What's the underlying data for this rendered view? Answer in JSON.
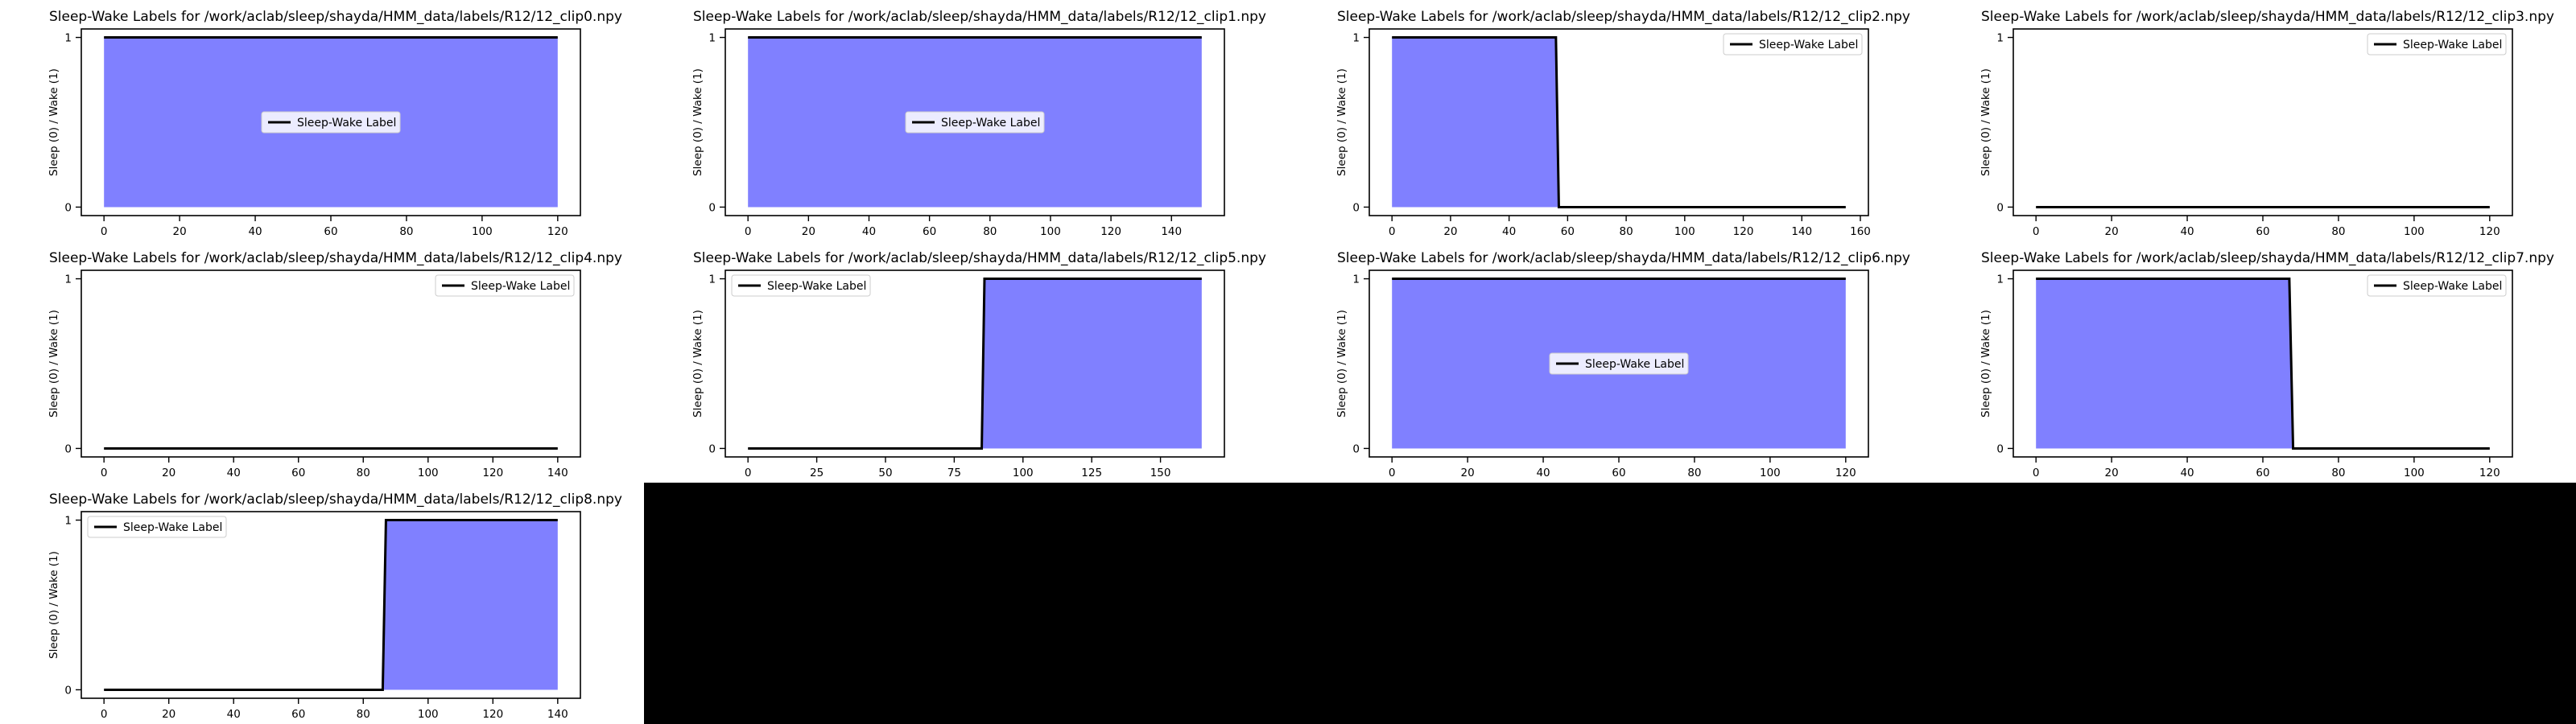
{
  "colors": {
    "fill": "#8080ff",
    "line": "#000000",
    "background": "#ffffff",
    "empty_area": "#000000"
  },
  "chart_data": [
    {
      "type": "area",
      "title": "Sleep-Wake Labels for /work/aclab/sleep/shayda/HMM_data/labels/R12/12_clip0.npy",
      "ylabel": "Sleep (0) / Wake (1)",
      "series": [
        {
          "name": "Sleep-Wake Label",
          "x": [
            0,
            120
          ],
          "y": [
            1,
            1
          ]
        }
      ],
      "xlim": [
        -6,
        126
      ],
      "ylim": [
        -0.05,
        1.05
      ],
      "xticks": [
        0,
        20,
        40,
        60,
        80,
        100,
        120
      ],
      "yticks": [
        0,
        1
      ],
      "legend_loc": "center"
    },
    {
      "type": "area",
      "title": "Sleep-Wake Labels for /work/aclab/sleep/shayda/HMM_data/labels/R12/12_clip1.npy",
      "ylabel": "Sleep (0) / Wake (1)",
      "series": [
        {
          "name": "Sleep-Wake Label",
          "x": [
            0,
            150
          ],
          "y": [
            1,
            1
          ]
        }
      ],
      "xlim": [
        -7.5,
        157.5
      ],
      "ylim": [
        -0.05,
        1.05
      ],
      "xticks": [
        0,
        20,
        40,
        60,
        80,
        100,
        120,
        140
      ],
      "yticks": [
        0,
        1
      ],
      "legend_loc": "center"
    },
    {
      "type": "area",
      "title": "Sleep-Wake Labels for /work/aclab/sleep/shayda/HMM_data/labels/R12/12_clip2.npy",
      "ylabel": "Sleep (0) / Wake (1)",
      "series": [
        {
          "name": "Sleep-Wake Label",
          "x": [
            0,
            56,
            57,
            155
          ],
          "y": [
            1,
            1,
            0,
            0
          ]
        }
      ],
      "xlim": [
        -7.75,
        162.75
      ],
      "ylim": [
        -0.05,
        1.05
      ],
      "xticks": [
        0,
        20,
        40,
        60,
        80,
        100,
        120,
        140,
        160
      ],
      "yticks": [
        0,
        1
      ],
      "legend_loc": "upper right"
    },
    {
      "type": "area",
      "title": "Sleep-Wake Labels for /work/aclab/sleep/shayda/HMM_data/labels/R12/12_clip3.npy",
      "ylabel": "Sleep (0) / Wake (1)",
      "series": [
        {
          "name": "Sleep-Wake Label",
          "x": [
            0,
            120
          ],
          "y": [
            0,
            0
          ]
        }
      ],
      "xlim": [
        -6,
        126
      ],
      "ylim": [
        -0.05,
        1.05
      ],
      "xticks": [
        0,
        20,
        40,
        60,
        80,
        100,
        120
      ],
      "yticks": [
        0,
        1
      ],
      "legend_loc": "upper right"
    },
    {
      "type": "area",
      "title": "Sleep-Wake Labels for /work/aclab/sleep/shayda/HMM_data/labels/R12/12_clip4.npy",
      "ylabel": "Sleep (0) / Wake (1)",
      "series": [
        {
          "name": "Sleep-Wake Label",
          "x": [
            0,
            140
          ],
          "y": [
            0,
            0
          ]
        }
      ],
      "xlim": [
        -7,
        147
      ],
      "ylim": [
        -0.05,
        1.05
      ],
      "xticks": [
        0,
        20,
        40,
        60,
        80,
        100,
        120,
        140
      ],
      "yticks": [
        0,
        1
      ],
      "legend_loc": "upper right"
    },
    {
      "type": "area",
      "title": "Sleep-Wake Labels for /work/aclab/sleep/shayda/HMM_data/labels/R12/12_clip5.npy",
      "ylabel": "Sleep (0) / Wake (1)",
      "series": [
        {
          "name": "Sleep-Wake Label",
          "x": [
            0,
            85,
            86,
            165
          ],
          "y": [
            0,
            0,
            1,
            1
          ]
        }
      ],
      "xlim": [
        -8.25,
        173.25
      ],
      "ylim": [
        -0.05,
        1.05
      ],
      "xticks": [
        0,
        25,
        50,
        75,
        100,
        125,
        150
      ],
      "yticks": [
        0,
        1
      ],
      "legend_loc": "upper left"
    },
    {
      "type": "area",
      "title": "Sleep-Wake Labels for /work/aclab/sleep/shayda/HMM_data/labels/R12/12_clip6.npy",
      "ylabel": "Sleep (0) / Wake (1)",
      "series": [
        {
          "name": "Sleep-Wake Label",
          "x": [
            0,
            120
          ],
          "y": [
            1,
            1
          ]
        }
      ],
      "xlim": [
        -6,
        126
      ],
      "ylim": [
        -0.05,
        1.05
      ],
      "xticks": [
        0,
        20,
        40,
        60,
        80,
        100,
        120
      ],
      "yticks": [
        0,
        1
      ],
      "legend_loc": "center"
    },
    {
      "type": "area",
      "title": "Sleep-Wake Labels for /work/aclab/sleep/shayda/HMM_data/labels/R12/12_clip7.npy",
      "ylabel": "Sleep (0) / Wake (1)",
      "series": [
        {
          "name": "Sleep-Wake Label",
          "x": [
            0,
            67,
            68,
            120
          ],
          "y": [
            1,
            1,
            0,
            0
          ]
        }
      ],
      "xlim": [
        -6,
        126
      ],
      "ylim": [
        -0.05,
        1.05
      ],
      "xticks": [
        0,
        20,
        40,
        60,
        80,
        100,
        120
      ],
      "yticks": [
        0,
        1
      ],
      "legend_loc": "upper right"
    },
    {
      "type": "area",
      "title": "Sleep-Wake Labels for /work/aclab/sleep/shayda/HMM_data/labels/R12/12_clip8.npy",
      "ylabel": "Sleep (0) / Wake (1)",
      "series": [
        {
          "name": "Sleep-Wake Label",
          "x": [
            0,
            86,
            87,
            140
          ],
          "y": [
            0,
            0,
            1,
            1
          ]
        }
      ],
      "xlim": [
        -7,
        147
      ],
      "ylim": [
        -0.05,
        1.05
      ],
      "xticks": [
        0,
        20,
        40,
        60,
        80,
        100,
        120,
        140
      ],
      "yticks": [
        0,
        1
      ],
      "legend_loc": "upper left"
    }
  ]
}
